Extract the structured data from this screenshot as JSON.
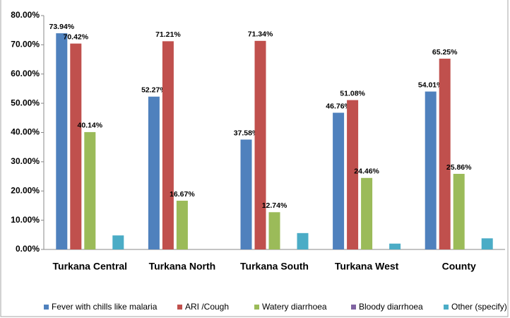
{
  "chart_data": {
    "type": "bar",
    "categories": [
      "Turkana Central",
      "Turkana North",
      "Turkana South",
      "Turkana West",
      "County"
    ],
    "series": [
      {
        "name": "Fever with chills like malaria",
        "color": "#4f81bd",
        "values": [
          73.94,
          52.27,
          37.58,
          46.76,
          54.01
        ],
        "value_labels": [
          "73.94%",
          "52.27%",
          "37.58%",
          "46.76%",
          "54.01%"
        ]
      },
      {
        "name": "ARI /Cough",
        "color": "#c0504d",
        "values": [
          70.42,
          71.21,
          71.34,
          51.08,
          65.25
        ],
        "value_labels": [
          "70.42%",
          "71.21%",
          "71.34%",
          "51.08%",
          "65.25%"
        ]
      },
      {
        "name": "Watery diarrhoea",
        "color": "#9bbb59",
        "values": [
          40.14,
          16.67,
          12.74,
          24.46,
          25.86
        ],
        "value_labels": [
          "40.14%",
          "16.67%",
          "12.74%",
          "24.46%",
          "25.86%"
        ]
      },
      {
        "name": "Bloody diarrhoea",
        "color": "#8064a2",
        "values": [
          0,
          0,
          0,
          0,
          0
        ]
      },
      {
        "name": "Other (specify)",
        "color": "#4bacc6",
        "values": [
          4.8,
          0,
          5.6,
          2.0,
          3.8
        ]
      }
    ],
    "ylim": [
      0,
      80
    ],
    "yticks": [
      {
        "value": 0,
        "label": "0.00%"
      },
      {
        "value": 10,
        "label": "10.00%"
      },
      {
        "value": 20,
        "label": "20.00%"
      },
      {
        "value": 30,
        "label": "30.00%"
      },
      {
        "value": 40,
        "label": "40.00%"
      },
      {
        "value": 50,
        "label": "50.00%"
      },
      {
        "value": 60,
        "label": "60.00%"
      },
      {
        "value": 70,
        "label": "70.00%"
      },
      {
        "value": 80,
        "label": "80.00%"
      }
    ],
    "legend": "bottom"
  }
}
